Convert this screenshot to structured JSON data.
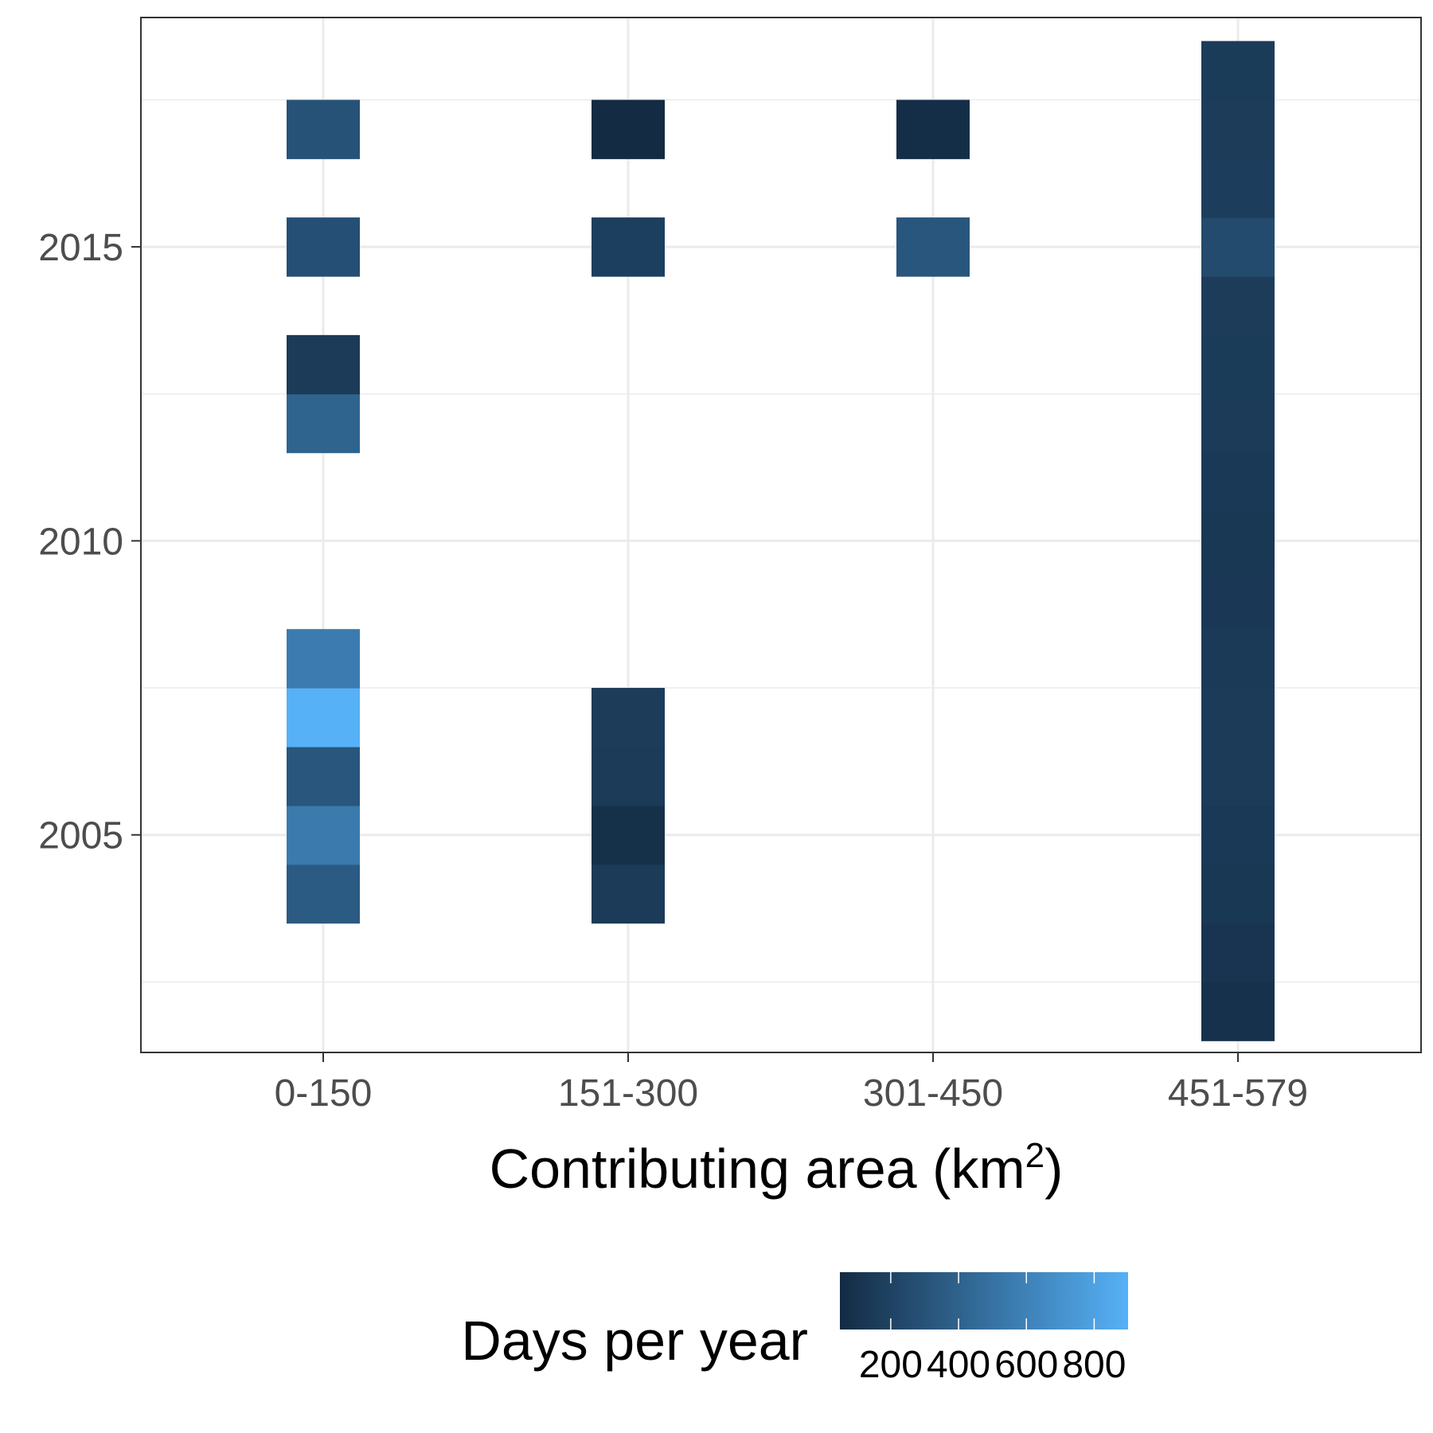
{
  "chart_data": {
    "type": "heatmap",
    "x_categories": [
      "0-150",
      "151-300",
      "301-450",
      "451-579"
    ],
    "xlabel_main": "Contributing area (km",
    "xlabel_sup": "2",
    "xlabel_close": ")",
    "ylabel": "",
    "ylim": [
      2001.3,
      2018.9
    ],
    "y_ticks": [
      2005,
      2010,
      2015
    ],
    "y_tick_labels": [
      "2005",
      "2010",
      "2015"
    ],
    "grid": true,
    "legend": {
      "title": "Days per year",
      "position": "bottom",
      "range": [
        50,
        900
      ],
      "ticks": [
        200,
        400,
        600,
        800
      ],
      "tick_labels": [
        "200",
        "400",
        "600",
        "800"
      ],
      "color_low": "#132B43",
      "color_high": "#56B1F7"
    },
    "cells": [
      {
        "x": "0-150",
        "year": 2004,
        "value": 350
      },
      {
        "x": "0-150",
        "year": 2005,
        "value": 550
      },
      {
        "x": "0-150",
        "year": 2006,
        "value": 320
      },
      {
        "x": "0-150",
        "year": 2007,
        "value": 900
      },
      {
        "x": "0-150",
        "year": 2008,
        "value": 560
      },
      {
        "x": "0-150",
        "year": 2012,
        "value": 410
      },
      {
        "x": "0-150",
        "year": 2013,
        "value": 150
      },
      {
        "x": "0-150",
        "year": 2015,
        "value": 280
      },
      {
        "x": "0-150",
        "year": 2017,
        "value": 300
      },
      {
        "x": "151-300",
        "year": 2004,
        "value": 150
      },
      {
        "x": "151-300",
        "year": 2005,
        "value": 80
      },
      {
        "x": "151-300",
        "year": 2006,
        "value": 150
      },
      {
        "x": "151-300",
        "year": 2007,
        "value": 160
      },
      {
        "x": "151-300",
        "year": 2015,
        "value": 180
      },
      {
        "x": "151-300",
        "year": 2017,
        "value": 50
      },
      {
        "x": "301-450",
        "year": 2015,
        "value": 320
      },
      {
        "x": "301-450",
        "year": 2017,
        "value": 70
      },
      {
        "x": "451-579",
        "year": 2002,
        "value": 90
      },
      {
        "x": "451-579",
        "year": 2003,
        "value": 110
      },
      {
        "x": "451-579",
        "year": 2004,
        "value": 130
      },
      {
        "x": "451-579",
        "year": 2005,
        "value": 140
      },
      {
        "x": "451-579",
        "year": 2006,
        "value": 150
      },
      {
        "x": "451-579",
        "year": 2007,
        "value": 150
      },
      {
        "x": "451-579",
        "year": 2008,
        "value": 145
      },
      {
        "x": "451-579",
        "year": 2009,
        "value": 135
      },
      {
        "x": "451-579",
        "year": 2010,
        "value": 130
      },
      {
        "x": "451-579",
        "year": 2011,
        "value": 140
      },
      {
        "x": "451-579",
        "year": 2012,
        "value": 150
      },
      {
        "x": "451-579",
        "year": 2013,
        "value": 155
      },
      {
        "x": "451-579",
        "year": 2014,
        "value": 160
      },
      {
        "x": "451-579",
        "year": 2015,
        "value": 250
      },
      {
        "x": "451-579",
        "year": 2016,
        "value": 170
      },
      {
        "x": "451-579",
        "year": 2017,
        "value": 160
      },
      {
        "x": "451-579",
        "year": 2018,
        "value": 155
      }
    ]
  }
}
